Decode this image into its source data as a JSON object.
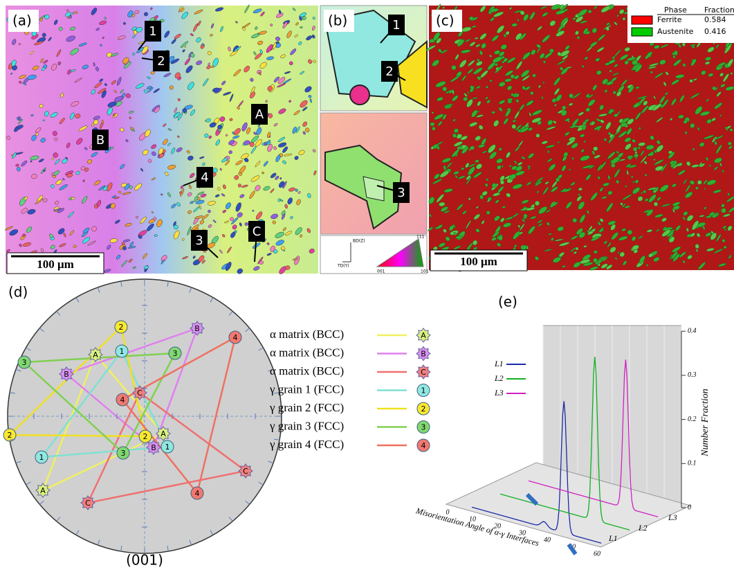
{
  "panels": {
    "a": {
      "label": "(a)",
      "markers": [
        "1",
        "2",
        "A",
        "B",
        "4",
        "3",
        "C"
      ],
      "scale_bar": "100 μm"
    },
    "b": {
      "label": "(b)",
      "markers": [
        "1",
        "2",
        "3"
      ],
      "axes": [
        "BD(Z)",
        "TD(Y)"
      ],
      "triangle": [
        "001",
        "101",
        "111"
      ]
    },
    "c": {
      "label": "(c)",
      "legend": {
        "header": [
          "Phase",
          "Fraction"
        ],
        "rows": [
          [
            "Ferrite",
            "0.584"
          ],
          [
            "Austenite",
            "0.416"
          ]
        ]
      },
      "scale_bar": "100 μm"
    },
    "d": {
      "label": "(d)",
      "caption": "(001)",
      "legend": [
        {
          "text": "α matrix (BCC)",
          "marker": "A",
          "points": [
            "A",
            "A",
            "A"
          ]
        },
        {
          "text": "α matrix (BCC)",
          "marker": "B",
          "points": [
            "B",
            "B",
            "B"
          ]
        },
        {
          "text": "α matrix (BCC)",
          "marker": "C",
          "points": [
            "C",
            "C",
            "C"
          ]
        },
        {
          "text": "γ grain 1 (FCC)",
          "marker": "1",
          "points": [
            "1",
            "1",
            "1"
          ]
        },
        {
          "text": "γ grain 2 (FCC)",
          "marker": "2",
          "points": [
            "2",
            "2",
            "2"
          ]
        },
        {
          "text": "γ grain 3 (FCC)",
          "marker": "3",
          "points": [
            "3",
            "3",
            "3"
          ]
        },
        {
          "text": "γ grain 4 (FCC)",
          "marker": "4",
          "points": [
            "4",
            "4",
            "4"
          ]
        }
      ]
    },
    "e": {
      "label": "(e)",
      "series": [
        "L1",
        "L2",
        "L3"
      ],
      "y_label": "Number Fraction",
      "x_label": "Misorientation Angle of α-γ Interfaces",
      "yticks": [
        "0",
        "0.1",
        "0.2",
        "0.3",
        "0.4"
      ],
      "xticks": [
        "0",
        "10",
        "20",
        "30",
        "40",
        "50",
        "60"
      ],
      "depth_labels": [
        "L1",
        "L2",
        "L3"
      ]
    }
  }
}
